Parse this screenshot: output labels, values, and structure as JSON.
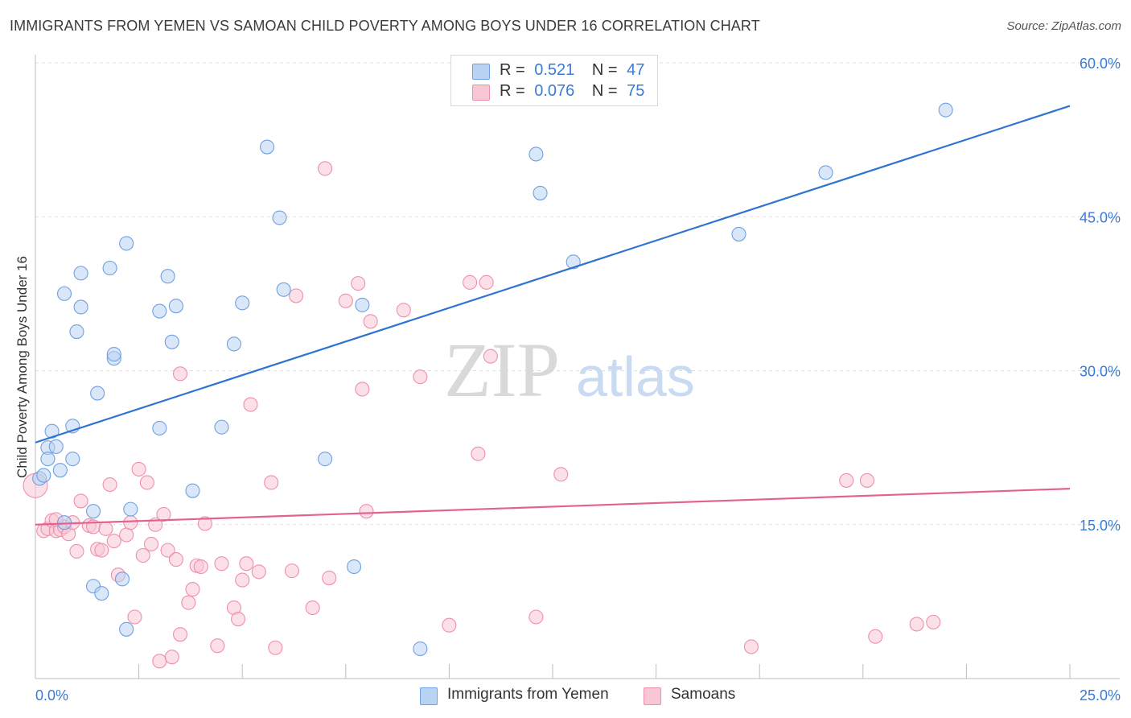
{
  "header": {
    "title": "IMMIGRANTS FROM YEMEN VS SAMOAN CHILD POVERTY AMONG BOYS UNDER 16 CORRELATION CHART",
    "source": "Source: ZipAtlas.com"
  },
  "watermark": {
    "zip": "ZIP",
    "atlas": "atlas"
  },
  "legend": {
    "rows": [
      {
        "r_label": "R =",
        "r_value": "0.521",
        "n_label": "N =",
        "n_value": "47",
        "color": "#a9c8f0"
      },
      {
        "r_label": "R =",
        "r_value": "0.076",
        "n_label": "N =",
        "n_value": "75",
        "color": "#f6b8cb"
      }
    ]
  },
  "bottom_legend": {
    "items": [
      {
        "label": "Immigrants from Yemen",
        "color": "#a9c8f0"
      },
      {
        "label": "Samoans",
        "color": "#f6b8cb"
      }
    ]
  },
  "chart_data": {
    "type": "scatter",
    "title": "IMMIGRANTS FROM YEMEN VS SAMOAN CHILD POVERTY AMONG BOYS UNDER 16 CORRELATION CHART",
    "xlabel": "",
    "ylabel": "Child Poverty Among Boys Under 16",
    "xlim": [
      0,
      25
    ],
    "ylim": [
      0,
      60
    ],
    "x_tick_labels": [
      "0.0%",
      "25.0%"
    ],
    "y_ticks": [
      15,
      30,
      45,
      60
    ],
    "y_tick_labels": [
      "15.0%",
      "30.0%",
      "45.0%",
      "60.0%"
    ],
    "grid": true,
    "legend_position": "top-center",
    "series": [
      {
        "name": "Immigrants from Yemen",
        "color": "#6fa0e0",
        "fill": "#b9d3f3",
        "trend": {
          "x": [
            0,
            25
          ],
          "y": [
            23.0,
            55.8
          ],
          "color": "#2f74d0"
        },
        "points": [
          [
            0.1,
            19.5
          ],
          [
            0.2,
            19.8
          ],
          [
            0.3,
            22.5
          ],
          [
            0.3,
            21.4
          ],
          [
            0.4,
            24.1
          ],
          [
            0.5,
            22.6
          ],
          [
            0.6,
            20.3
          ],
          [
            0.7,
            15.2
          ],
          [
            0.7,
            37.5
          ],
          [
            0.9,
            24.6
          ],
          [
            0.9,
            21.4
          ],
          [
            1.0,
            33.8
          ],
          [
            1.1,
            36.2
          ],
          [
            1.1,
            39.5
          ],
          [
            1.4,
            9.0
          ],
          [
            1.4,
            16.3
          ],
          [
            1.5,
            27.8
          ],
          [
            1.6,
            8.3
          ],
          [
            1.8,
            40.0
          ],
          [
            1.9,
            31.2
          ],
          [
            1.9,
            31.6
          ],
          [
            2.1,
            9.7
          ],
          [
            2.2,
            42.4
          ],
          [
            2.2,
            4.8
          ],
          [
            2.3,
            16.5
          ],
          [
            3.0,
            24.4
          ],
          [
            3.0,
            35.8
          ],
          [
            3.2,
            39.2
          ],
          [
            3.3,
            32.8
          ],
          [
            3.4,
            36.3
          ],
          [
            3.8,
            18.3
          ],
          [
            4.5,
            24.5
          ],
          [
            4.8,
            32.6
          ],
          [
            5.0,
            36.6
          ],
          [
            5.6,
            51.8
          ],
          [
            5.9,
            44.9
          ],
          [
            6.0,
            37.9
          ],
          [
            7.0,
            21.4
          ],
          [
            7.7,
            10.9
          ],
          [
            7.9,
            36.4
          ],
          [
            9.3,
            2.9
          ],
          [
            12.1,
            51.1
          ],
          [
            12.2,
            47.3
          ],
          [
            13.0,
            40.6
          ],
          [
            17.0,
            43.3
          ],
          [
            19.1,
            49.3
          ],
          [
            22.0,
            55.4
          ]
        ]
      },
      {
        "name": "Samoans",
        "color": "#ee8fac",
        "fill": "#f8c6d5",
        "trend": {
          "x": [
            0,
            25
          ],
          "y": [
            15.0,
            18.5
          ],
          "color": "#e36390"
        },
        "points": [
          [
            0.0,
            18.8
          ],
          [
            0.2,
            14.4
          ],
          [
            0.3,
            14.6
          ],
          [
            0.4,
            15.4
          ],
          [
            0.5,
            14.4
          ],
          [
            0.6,
            14.5
          ],
          [
            0.7,
            14.8
          ],
          [
            0.8,
            14.1
          ],
          [
            0.9,
            15.2
          ],
          [
            1.0,
            12.4
          ],
          [
            1.1,
            17.3
          ],
          [
            1.3,
            14.9
          ],
          [
            1.4,
            14.8
          ],
          [
            1.5,
            12.6
          ],
          [
            1.6,
            12.5
          ],
          [
            1.7,
            14.6
          ],
          [
            1.8,
            18.9
          ],
          [
            1.9,
            13.4
          ],
          [
            2.0,
            10.1
          ],
          [
            2.2,
            14.0
          ],
          [
            2.3,
            15.2
          ],
          [
            2.4,
            6.0
          ],
          [
            2.5,
            20.4
          ],
          [
            2.6,
            12.0
          ],
          [
            2.7,
            19.1
          ],
          [
            2.8,
            13.1
          ],
          [
            2.9,
            15.0
          ],
          [
            3.0,
            1.7
          ],
          [
            3.1,
            16.0
          ],
          [
            3.2,
            12.5
          ],
          [
            3.3,
            2.1
          ],
          [
            3.4,
            11.6
          ],
          [
            3.5,
            4.3
          ],
          [
            3.5,
            29.7
          ],
          [
            3.7,
            7.4
          ],
          [
            3.8,
            8.7
          ],
          [
            3.9,
            11.0
          ],
          [
            4.0,
            10.9
          ],
          [
            4.1,
            15.1
          ],
          [
            4.4,
            3.2
          ],
          [
            4.5,
            11.2
          ],
          [
            4.8,
            6.9
          ],
          [
            4.9,
            5.8
          ],
          [
            5.0,
            9.6
          ],
          [
            5.1,
            11.2
          ],
          [
            5.2,
            26.7
          ],
          [
            5.4,
            10.4
          ],
          [
            5.7,
            19.1
          ],
          [
            5.8,
            3.0
          ],
          [
            6.2,
            10.5
          ],
          [
            6.3,
            37.3
          ],
          [
            6.7,
            6.9
          ],
          [
            7.0,
            49.7
          ],
          [
            7.1,
            9.8
          ],
          [
            7.5,
            36.8
          ],
          [
            7.8,
            38.5
          ],
          [
            7.9,
            28.2
          ],
          [
            8.0,
            16.3
          ],
          [
            8.1,
            34.8
          ],
          [
            8.9,
            35.9
          ],
          [
            9.3,
            29.4
          ],
          [
            10.0,
            5.2
          ],
          [
            10.5,
            38.6
          ],
          [
            10.7,
            21.9
          ],
          [
            10.9,
            38.6
          ],
          [
            11.0,
            31.4
          ],
          [
            12.1,
            6.0
          ],
          [
            12.7,
            19.9
          ],
          [
            17.3,
            3.1
          ],
          [
            19.6,
            19.3
          ],
          [
            20.1,
            19.3
          ],
          [
            20.3,
            4.1
          ],
          [
            21.3,
            5.3
          ],
          [
            21.7,
            5.5
          ],
          [
            0.5,
            15.5
          ]
        ]
      }
    ]
  }
}
